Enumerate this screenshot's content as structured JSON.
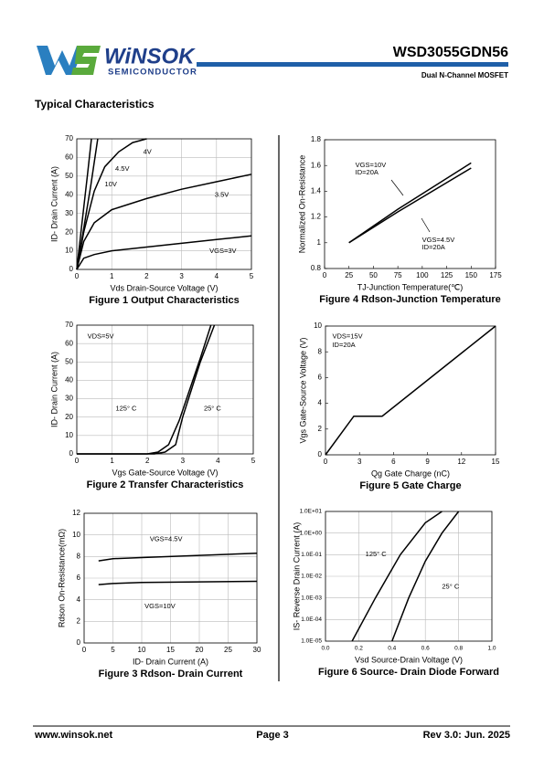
{
  "header": {
    "brand": "WiNSOK",
    "tagline": "SEMICONDUCTOR",
    "part_number": "WSD3055GDN56",
    "description": "Dual N-Channel MOSFET"
  },
  "section_title": "Typical Characteristics",
  "chart_data": [
    {
      "type": "line",
      "title": "Figure 1 Output Characteristics",
      "x_label": "Vds Drain-Source Voltage (V)",
      "y_label": "ID- Drain Current (A)",
      "grid": true,
      "xlim": [
        0,
        5
      ],
      "xticks": [
        0,
        1,
        2,
        3,
        4,
        5
      ],
      "ylim": [
        0,
        70
      ],
      "yticks": [
        0,
        10,
        20,
        30,
        40,
        50,
        60,
        70
      ],
      "series": [
        {
          "name": "10V",
          "color": "#000000",
          "x": [
            0,
            0.15,
            0.3,
            0.42
          ],
          "values": [
            0,
            25,
            50,
            70
          ]
        },
        {
          "name": "4.5V",
          "color": "#000000",
          "x": [
            0,
            0.2,
            0.4,
            0.6
          ],
          "values": [
            0,
            22,
            45,
            70
          ]
        },
        {
          "name": "4V",
          "color": "#000000",
          "x": [
            0,
            0.2,
            0.5,
            0.8,
            1.2,
            1.6,
            2
          ],
          "values": [
            0,
            20,
            42,
            55,
            63,
            68,
            70
          ]
        },
        {
          "name": "3.5V",
          "color": "#000000",
          "x": [
            0,
            0.2,
            0.5,
            1,
            2,
            3,
            4,
            5
          ],
          "values": [
            0,
            15,
            25,
            32,
            38,
            43,
            47,
            51
          ]
        },
        {
          "name": "VGS=3V",
          "color": "#000000",
          "x": [
            0,
            0.2,
            0.5,
            1,
            2,
            3,
            4,
            5
          ],
          "values": [
            0,
            6,
            8,
            10,
            12,
            14,
            16,
            18
          ]
        }
      ]
    },
    {
      "type": "line",
      "title": "Figure 2 Transfer Characteristics",
      "x_label": "Vgs Gate-Source Voltage (V)",
      "y_label": "ID- Drain Current (A)",
      "grid": true,
      "xlim": [
        0,
        5
      ],
      "xticks": [
        0,
        1,
        2,
        3,
        4,
        5
      ],
      "ylim": [
        0,
        70
      ],
      "yticks": [
        0,
        10,
        20,
        30,
        40,
        50,
        60,
        70
      ],
      "annotations": [
        "VDS=5V"
      ],
      "series": [
        {
          "name": "125° C",
          "color": "#000000",
          "x": [
            0,
            2,
            2.3,
            2.6,
            2.9,
            3.2,
            3.5,
            3.8
          ],
          "values": [
            0,
            0,
            1,
            5,
            18,
            35,
            52,
            70
          ]
        },
        {
          "name": "25° C",
          "color": "#000000",
          "x": [
            0,
            2.2,
            2.5,
            2.8,
            3.0,
            3.2,
            3.5,
            3.9
          ],
          "values": [
            0,
            0,
            1,
            5,
            20,
            32,
            50,
            70
          ]
        }
      ]
    },
    {
      "type": "line",
      "title": "Figure 3 Rdson- Drain Current",
      "x_label": "ID- Drain Current (A)",
      "y_label": "Rdson On-Resistance(mΩ)",
      "grid": true,
      "xlim": [
        0,
        30
      ],
      "xticks": [
        0,
        5,
        10,
        15,
        20,
        25,
        30
      ],
      "ylim": [
        0,
        12
      ],
      "yticks": [
        0,
        2,
        4,
        6,
        8,
        10,
        12
      ],
      "series": [
        {
          "name": "VGS=4.5V",
          "color": "#000000",
          "x": [
            2.5,
            5,
            10,
            20,
            30
          ],
          "values": [
            7.6,
            7.8,
            7.9,
            8.1,
            8.3
          ]
        },
        {
          "name": "VGS=10V",
          "color": "#000000",
          "x": [
            2.5,
            5,
            10,
            20,
            30
          ],
          "values": [
            5.4,
            5.5,
            5.6,
            5.65,
            5.7
          ]
        }
      ]
    },
    {
      "type": "line",
      "title": "Figure 4 Rdson-Junction Temperature",
      "x_label": "TJ-Junction Temperature(℃)",
      "y_label": "Normalized On-Resistance",
      "grid": false,
      "xlim": [
        0,
        175
      ],
      "xticks": [
        0,
        25,
        50,
        75,
        100,
        125,
        150,
        175
      ],
      "ylim": [
        0.8,
        1.8
      ],
      "yticks": [
        0.8,
        1,
        1.2,
        1.4,
        1.6,
        1.8
      ],
      "series": [
        {
          "name": "VGS=10V",
          "note": "ID=20A",
          "color": "#000000",
          "x": [
            25,
            75,
            150
          ],
          "values": [
            1,
            1.26,
            1.62
          ]
        },
        {
          "name": "VGS=4.5V",
          "note": "ID=20A",
          "color": "#000000",
          "x": [
            25,
            75,
            150
          ],
          "values": [
            1,
            1.24,
            1.58
          ]
        }
      ]
    },
    {
      "type": "line",
      "title": "Figure 5 Gate Charge",
      "x_label": "Qg Gate Charge (nC)",
      "y_label": "Vgs Gate-Source Voltage (V)",
      "grid": false,
      "xlim": [
        0,
        15
      ],
      "xticks": [
        0,
        3,
        6,
        9,
        12,
        15
      ],
      "ylim": [
        0,
        10
      ],
      "yticks": [
        0,
        2,
        4,
        6,
        8,
        10
      ],
      "annotations": [
        "VDS=15V",
        "ID=20A"
      ],
      "series": [
        {
          "name": "Vgs",
          "color": "#000000",
          "x": [
            0,
            2.5,
            5,
            15
          ],
          "values": [
            0,
            3,
            3,
            10
          ]
        }
      ]
    },
    {
      "type": "line",
      "title": "Figure 6 Source- Drain Diode Forward",
      "x_label": "Vsd Source-Drain Voltage (V)",
      "y_label": "IS- Reverse Drain Current (A)",
      "grid": true,
      "log_y": true,
      "xlim": [
        0,
        1
      ],
      "xticks": [
        {
          "value": 0,
          "label": "0.0"
        },
        0.2,
        0.4,
        0.6,
        0.8,
        {
          "value": 1,
          "label": "1.0"
        }
      ],
      "ylim": [
        1e-05,
        10
      ],
      "yticks": [
        {
          "value": 1e-05,
          "label": "1.0E-05"
        },
        {
          "value": 0.0001,
          "label": "1.0E-04"
        },
        {
          "value": 0.001,
          "label": "1.0E-03"
        },
        {
          "value": 0.01,
          "label": "1.0E-02"
        },
        {
          "value": 0.1,
          "label": "1.0E-01"
        },
        {
          "value": 1,
          "label": "1.0E+00"
        },
        {
          "value": 10,
          "label": "1.0E+01"
        }
      ],
      "series": [
        {
          "name": "125° C",
          "color": "#000000",
          "x": [
            0.16,
            0.3,
            0.45,
            0.6,
            0.7
          ],
          "values": [
            1e-05,
            0.001,
            0.1,
            3,
            10
          ]
        },
        {
          "name": "25° C",
          "color": "#000000",
          "x": [
            0.4,
            0.5,
            0.6,
            0.7,
            0.8
          ],
          "values": [
            1e-05,
            0.001,
            0.05,
            1,
            10
          ]
        }
      ]
    }
  ],
  "footer": {
    "website": "www.winsok.net",
    "page": "Page 3",
    "revision": "Rev 3.0: Jun. 2025"
  }
}
